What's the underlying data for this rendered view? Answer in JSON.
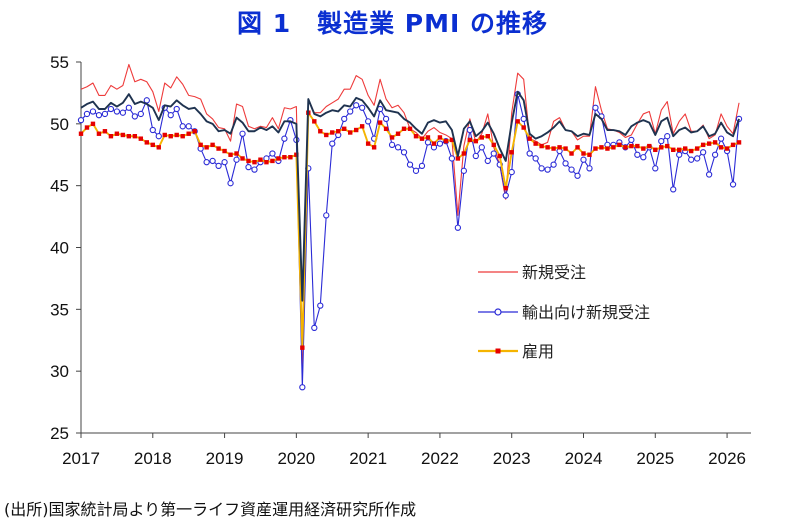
{
  "title": "図 1　製造業 PMI の推移",
  "source": "(出所)国家統計局より第一ライフ資産運用経済研究所作成",
  "colors": {
    "new_orders": "#ee3b3b",
    "export_orders": "#2b2bd6",
    "employment": "#f5b400",
    "employment_marker": "#e60000",
    "pmi": "#1f3350",
    "title": "#0b2fd1"
  },
  "chart_data": {
    "type": "line",
    "title": "図 1　製造業 PMI の推移",
    "xlabel": "",
    "ylabel": "",
    "ylim": [
      25,
      55
    ],
    "yticks": [
      25,
      30,
      35,
      40,
      45,
      50,
      55
    ],
    "x_tick_labels": [
      "2017",
      "2018",
      "2019",
      "2020",
      "2021",
      "2022",
      "2023",
      "2024",
      "2025",
      "2026"
    ],
    "x_start": "2017-01",
    "frequency": "monthly",
    "legend_position": "center-right",
    "grid": false,
    "series": [
      {
        "name": "PMI",
        "in_legend": false,
        "color_key": "pmi",
        "values": [
          51.3,
          51.6,
          51.8,
          51.2,
          51.2,
          51.7,
          51.4,
          51.7,
          52.4,
          51.6,
          51.8,
          51.6,
          51.3,
          50.3,
          51.5,
          51.4,
          51.9,
          51.5,
          51.2,
          51.3,
          50.8,
          50.2,
          50.0,
          49.4,
          49.5,
          49.2,
          50.5,
          50.1,
          49.4,
          49.4,
          49.7,
          49.5,
          49.8,
          49.3,
          50.2,
          50.2,
          50.0,
          35.7,
          52.0,
          50.8,
          50.6,
          50.9,
          51.1,
          51.0,
          51.5,
          51.4,
          52.1,
          51.9,
          51.3,
          50.6,
          51.9,
          51.1,
          51.0,
          50.9,
          50.4,
          50.1,
          49.6,
          49.2,
          50.1,
          50.3,
          50.1,
          50.2,
          49.5,
          47.4,
          49.6,
          50.2,
          49.0,
          49.4,
          50.1,
          49.2,
          48.0,
          47.0,
          50.1,
          52.6,
          51.9,
          49.2,
          48.8,
          49.0,
          49.3,
          49.7,
          50.2,
          49.5,
          49.4,
          49.0,
          49.2,
          49.1,
          50.8,
          50.4,
          49.5,
          49.5,
          49.4,
          49.1,
          49.8,
          50.1,
          50.3,
          50.1,
          49.1,
          50.2,
          50.5,
          49.0,
          49.5,
          49.7,
          49.3,
          49.4,
          49.8,
          49.0,
          49.2,
          50.1,
          49.3,
          49.0,
          50.4
        ]
      },
      {
        "name": "新規受注",
        "in_legend": true,
        "color_key": "new_orders",
        "values": [
          52.8,
          53.0,
          53.3,
          52.3,
          52.3,
          53.1,
          52.8,
          53.1,
          54.8,
          53.4,
          53.6,
          53.4,
          52.6,
          51.0,
          53.3,
          52.9,
          53.8,
          53.2,
          52.3,
          52.2,
          52.0,
          50.8,
          50.4,
          49.7,
          49.6,
          48.6,
          51.6,
          51.4,
          49.8,
          49.6,
          49.8,
          49.7,
          50.5,
          49.6,
          51.3,
          51.2,
          51.4,
          29.3,
          52.0,
          50.9,
          50.9,
          51.4,
          51.7,
          52.0,
          52.8,
          52.8,
          53.9,
          53.6,
          52.3,
          51.5,
          53.6,
          52.0,
          51.3,
          51.5,
          50.9,
          49.6,
          49.3,
          48.8,
          49.4,
          49.7,
          49.3,
          49.1,
          48.8,
          42.6,
          48.2,
          50.4,
          48.5,
          49.2,
          50.8,
          48.1,
          46.7,
          43.9,
          50.9,
          54.1,
          53.6,
          48.8,
          48.6,
          48.3,
          48.5,
          50.2,
          50.5,
          49.5,
          49.4,
          48.7,
          49.0,
          49.0,
          53.0,
          51.1,
          49.6,
          49.5,
          49.3,
          48.9,
          49.1,
          50.0,
          50.8,
          51.0,
          49.2,
          51.1,
          51.8,
          49.2,
          50.2,
          50.8,
          49.4,
          49.4,
          49.9,
          48.8,
          49.1,
          50.8,
          49.8,
          49.2,
          51.7
        ]
      },
      {
        "name": "輸出向け新規受注",
        "in_legend": true,
        "color_key": "export_orders",
        "values": [
          50.3,
          50.8,
          51.0,
          50.7,
          50.8,
          51.2,
          51.0,
          50.9,
          51.3,
          50.6,
          50.8,
          51.9,
          49.5,
          49.0,
          51.3,
          50.7,
          51.2,
          49.8,
          49.8,
          49.4,
          48.0,
          46.9,
          47.0,
          46.6,
          46.9,
          45.2,
          47.1,
          49.2,
          46.5,
          46.3,
          46.9,
          47.2,
          47.6,
          47.0,
          48.8,
          50.3,
          48.7,
          28.7,
          46.4,
          33.5,
          35.3,
          42.6,
          48.4,
          49.1,
          50.4,
          51.0,
          51.5,
          51.3,
          50.2,
          48.8,
          51.2,
          50.4,
          48.3,
          48.1,
          47.7,
          46.7,
          46.2,
          46.6,
          48.5,
          48.1,
          48.4,
          48.6,
          47.2,
          41.6,
          46.2,
          49.5,
          47.4,
          48.1,
          47.0,
          47.6,
          46.7,
          44.2,
          46.1,
          52.4,
          50.4,
          47.6,
          47.2,
          46.4,
          46.3,
          46.7,
          47.8,
          46.8,
          46.3,
          45.8,
          47.1,
          46.4,
          51.3,
          50.6,
          48.3,
          48.3,
          48.5,
          48.1,
          48.7,
          47.5,
          47.3,
          48.1,
          46.4,
          48.6,
          49.0,
          44.7,
          47.5,
          47.8,
          47.1,
          47.2,
          47.7,
          45.9,
          47.5,
          48.8,
          47.8,
          45.1,
          50.4
        ]
      },
      {
        "name": "雇用",
        "in_legend": true,
        "color_key": "employment",
        "values": [
          49.2,
          49.7,
          50.0,
          49.2,
          49.4,
          49.0,
          49.2,
          49.1,
          49.0,
          49.0,
          48.8,
          48.5,
          48.3,
          48.1,
          49.1,
          49.0,
          49.1,
          49.0,
          49.2,
          49.4,
          48.3,
          48.1,
          48.3,
          48.0,
          47.8,
          47.5,
          47.6,
          47.2,
          47.0,
          46.9,
          47.1,
          46.9,
          47.0,
          47.2,
          47.3,
          47.3,
          47.5,
          31.9,
          50.9,
          50.2,
          49.4,
          49.1,
          49.3,
          49.4,
          49.6,
          49.3,
          49.5,
          49.8,
          48.4,
          48.1,
          50.1,
          49.6,
          48.9,
          49.2,
          49.6,
          49.6,
          49.0,
          48.8,
          48.9,
          48.4,
          48.9,
          48.6,
          48.7,
          47.2,
          47.6,
          48.7,
          48.6,
          48.9,
          49.0,
          48.3,
          47.4,
          44.8,
          47.7,
          50.2,
          49.7,
          48.8,
          48.4,
          48.2,
          48.1,
          48.0,
          48.1,
          48.0,
          47.6,
          48.1,
          47.6,
          47.5,
          48.0,
          48.1,
          48.0,
          48.1,
          48.3,
          48.1,
          48.2,
          48.2,
          48.0,
          48.2,
          47.9,
          48.1,
          48.2,
          47.9,
          47.9,
          48.0,
          47.8,
          48.0,
          48.3,
          48.4,
          48.5,
          48.1,
          48.0,
          48.3,
          48.5
        ]
      }
    ]
  }
}
